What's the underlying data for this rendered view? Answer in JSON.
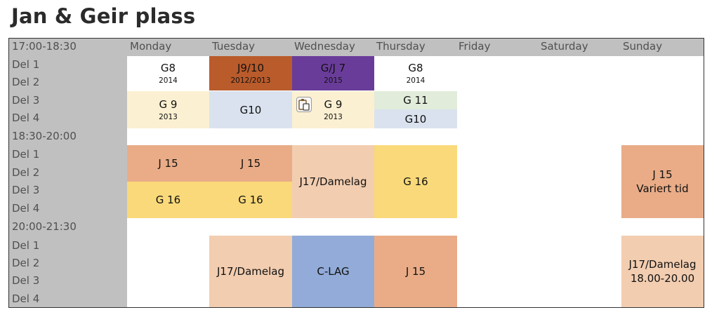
{
  "title": "Jan & Geir plass",
  "header": {
    "time": "17:00-18:30",
    "days": [
      "Monday",
      "Tuesday",
      "Wednesday",
      "Thursday",
      "Friday",
      "Saturday",
      "Sunday"
    ]
  },
  "rows": [
    "Del 1",
    "Del 2",
    "Del 3",
    "Del 4",
    "18:30-20:00",
    "Del 1",
    "Del 2",
    "Del 3",
    "Del 4",
    "20:00-21:30",
    "Del 1",
    "Del 2",
    "Del 3",
    "Del 4"
  ],
  "blocks": {
    "mon_g8": {
      "team": "G8",
      "year": "2014"
    },
    "tue_j910": {
      "team": "J9/10",
      "year": "2012/2013"
    },
    "wed_gj7": {
      "team": "G/J 7",
      "year": "2015"
    },
    "thu_g8": {
      "team": "G8",
      "year": "2014"
    },
    "mon_g9": {
      "team": "G 9",
      "year": "2013"
    },
    "tue_g10": {
      "team": "G10"
    },
    "wed_g9": {
      "team": "G 9",
      "year": "2013"
    },
    "thu_g11": {
      "team": "G 11"
    },
    "thu_g10": {
      "team": "G10"
    },
    "mon_j15": {
      "team": "J 15"
    },
    "tue_j15": {
      "team": "J 15"
    },
    "mon_g16": {
      "team": "G 16"
    },
    "tue_g16": {
      "team": "G 16"
    },
    "wed_j17": {
      "team": "J17/Damelag"
    },
    "thu_g16": {
      "team": "G 16"
    },
    "sun_j15": {
      "team": "J 15",
      "note": "Variert tid"
    },
    "tue_j17b": {
      "team": "J17/Damelag"
    },
    "wed_clag": {
      "team": "C-LAG"
    },
    "thu_j15b": {
      "team": "J 15"
    },
    "sun_j17": {
      "team": "J17/Damelag",
      "note": "18.00-20.00"
    }
  },
  "colors": {
    "header_gray": "#c0c0c0",
    "rust": "#b95b2b",
    "purple": "#6a3c9a",
    "cream": "#fbf0d2",
    "light_blue": "#dae2ef",
    "light_green": "#e1ecda",
    "salmon": "#e9ac87",
    "yellow": "#f9d979",
    "peach": "#f2cdb0",
    "blue": "#92abd8"
  },
  "icons": {
    "paste": "clipboard-paste-icon"
  }
}
